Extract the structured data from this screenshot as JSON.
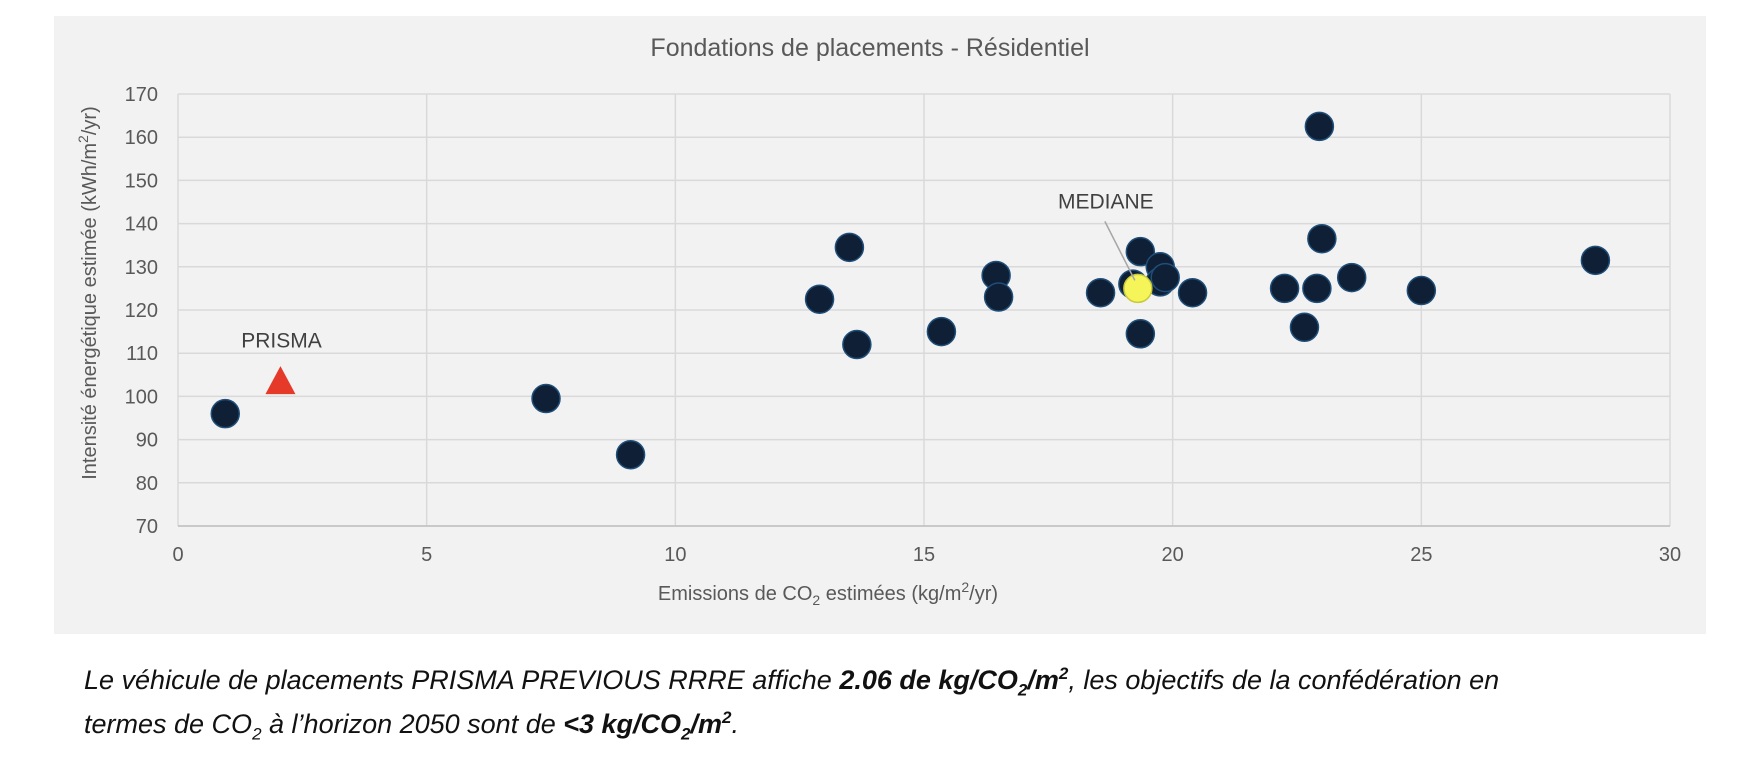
{
  "chart_data": {
    "type": "scatter",
    "title": "Fondations de placements - Résidentiel",
    "xlabel": {
      "pre": "Emissions de CO",
      "sub": "2",
      "mid": " estimées (kg/m",
      "sup": "2",
      "post": "/yr)"
    },
    "ylabel": {
      "pre": "Intensité énergétique estimée (kWh/m",
      "sup": "2",
      "post": "/yr)"
    },
    "xlim": [
      0,
      30
    ],
    "ylim": [
      70,
      170
    ],
    "x_ticks": [
      "0",
      "5",
      "10",
      "15",
      "20",
      "25",
      "30"
    ],
    "y_ticks": [
      "70",
      "80",
      "90",
      "100",
      "110",
      "120",
      "130",
      "140",
      "150",
      "160",
      "170"
    ],
    "grid": true,
    "colors": {
      "points": "#0e1f36",
      "point_edge": "#1f4e79",
      "median": "#f5f55a",
      "prisma": "#e53a2a",
      "grid": "#d9d9d9",
      "panel": "#f2f2f2"
    },
    "series": [
      {
        "marker": "circle",
        "points": [
          [
            0.95,
            96
          ],
          [
            7.4,
            99.5
          ],
          [
            9.1,
            86.5
          ],
          [
            12.9,
            122.5
          ],
          [
            13.5,
            134.5
          ],
          [
            13.65,
            112
          ],
          [
            15.35,
            115
          ],
          [
            16.45,
            128
          ],
          [
            16.5,
            123
          ],
          [
            18.55,
            124
          ],
          [
            19.2,
            126
          ],
          [
            19.35,
            133.5
          ],
          [
            19.35,
            114.5
          ],
          [
            19.75,
            130
          ],
          [
            19.75,
            126.5
          ],
          [
            19.85,
            127.5
          ],
          [
            20.4,
            124
          ],
          [
            22.25,
            125
          ],
          [
            22.65,
            116
          ],
          [
            22.9,
            125
          ],
          [
            22.95,
            162.5
          ],
          [
            23.0,
            136.5
          ],
          [
            23.6,
            127.5
          ],
          [
            25.0,
            124.5
          ],
          [
            28.5,
            131.5
          ]
        ]
      },
      {
        "name": "MEDIANE",
        "marker": "circle",
        "points": [
          [
            19.3,
            125
          ]
        ]
      },
      {
        "name": "PRISMA",
        "marker": "triangle",
        "points": [
          [
            2.06,
            103
          ]
        ]
      }
    ],
    "annotations": [
      {
        "text": "MEDIANE",
        "x": 19.3,
        "y": 125
      },
      {
        "text": "PRISMA",
        "x": 2.06,
        "y": 103
      }
    ]
  },
  "caption": {
    "line1": {
      "a": "Le véhicule de placements PRISMA PREVIOUS RRRE affiche ",
      "b1": "2.06 de kg/CO",
      "b1_sub": "2",
      "b1_mid": "/m",
      "b1_sup": "2",
      "c": ", les objectifs de la confédération en"
    },
    "line2": {
      "a": "termes de CO",
      "a_sub": "2",
      "b": " à l’horizon 2050 sont de ",
      "c1": "<3 kg/CO",
      "c1_sub": "2",
      "c1_mid": "/m",
      "c1_sup": "2",
      "d": "."
    }
  }
}
